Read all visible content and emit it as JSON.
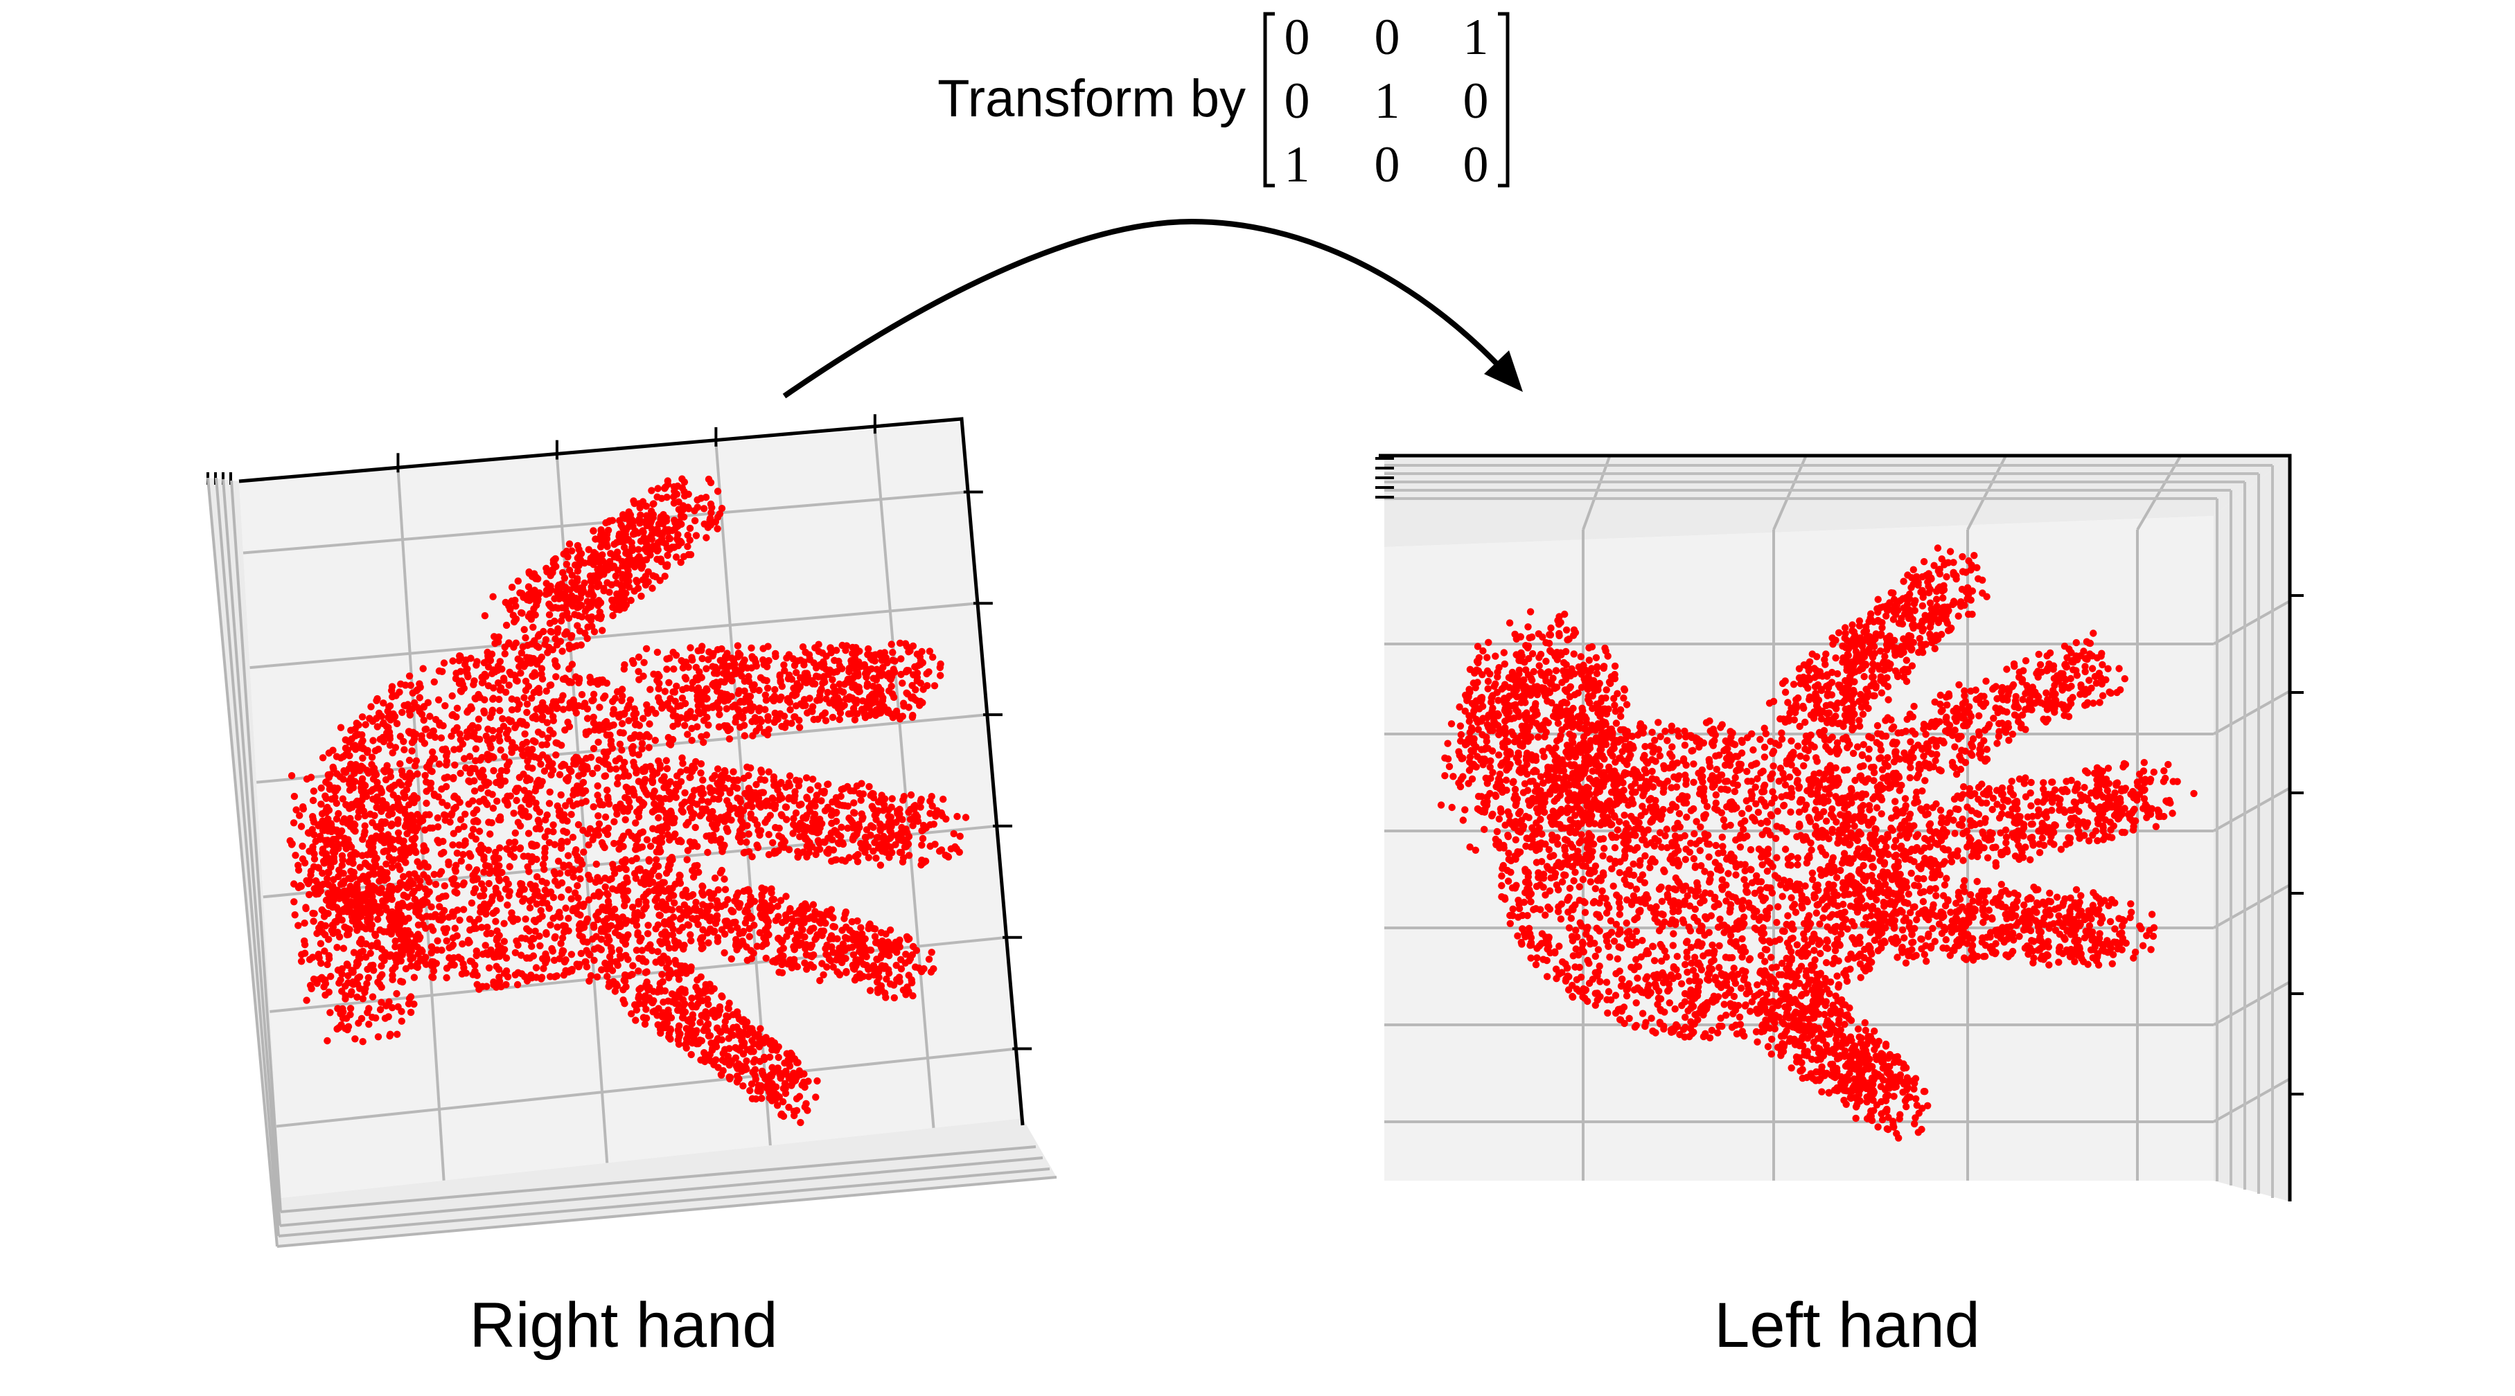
{
  "transform": {
    "prefix": "Transform by",
    "matrix": [
      [
        "0",
        "0",
        "1"
      ],
      [
        "0",
        "1",
        "0"
      ],
      [
        "1",
        "0",
        "0"
      ]
    ]
  },
  "labels": {
    "right": "Right hand",
    "left": "Left hand"
  },
  "colors": {
    "points": "#ff0000",
    "pane": "#f2f2f2",
    "grid": "#b8b8b8",
    "arrow": "#000000"
  }
}
